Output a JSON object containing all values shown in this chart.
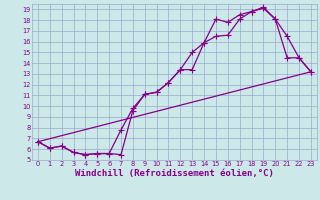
{
  "xlabel": "Windchill (Refroidissement éolien,°C)",
  "bg_color": "#cce8e8",
  "line_color": "#880088",
  "grid_color": "#99aacc",
  "xlim": [
    -0.5,
    23.5
  ],
  "ylim": [
    5,
    19.5
  ],
  "xticks": [
    0,
    1,
    2,
    3,
    4,
    5,
    6,
    7,
    8,
    9,
    10,
    11,
    12,
    13,
    14,
    15,
    16,
    17,
    18,
    19,
    20,
    21,
    22,
    23
  ],
  "yticks": [
    5,
    6,
    7,
    8,
    9,
    10,
    11,
    12,
    13,
    14,
    15,
    16,
    17,
    18,
    19
  ],
  "line1_x": [
    0,
    1,
    2,
    3,
    4,
    5,
    6,
    7,
    8,
    9,
    10,
    11,
    12,
    13,
    14,
    15,
    16,
    17,
    18,
    19,
    20,
    21,
    22,
    23
  ],
  "line1_y": [
    6.7,
    6.1,
    6.3,
    5.7,
    5.5,
    5.6,
    5.6,
    5.5,
    9.6,
    11.1,
    11.3,
    12.2,
    13.4,
    15.0,
    15.9,
    18.1,
    17.8,
    18.5,
    18.8,
    19.1,
    18.1,
    16.5,
    14.5,
    13.2
  ],
  "line2_x": [
    0,
    1,
    2,
    3,
    4,
    5,
    6,
    7,
    8,
    9,
    10,
    11,
    12,
    13,
    14,
    15,
    16,
    17,
    18,
    19,
    20,
    21,
    22,
    23
  ],
  "line2_y": [
    6.7,
    6.1,
    6.3,
    5.7,
    5.5,
    5.6,
    5.6,
    7.8,
    9.8,
    11.1,
    11.3,
    12.2,
    13.4,
    13.4,
    15.9,
    16.5,
    16.6,
    18.1,
    18.8,
    19.2,
    18.1,
    14.5,
    14.5,
    13.2
  ],
  "line3_x": [
    0,
    23
  ],
  "line3_y": [
    6.7,
    13.2
  ],
  "marker_size": 4,
  "linewidth": 0.9,
  "tick_fontsize": 4.8,
  "xlabel_fontsize": 6.5
}
